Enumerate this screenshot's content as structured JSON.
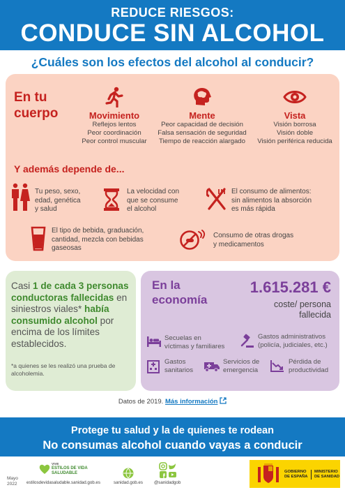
{
  "header": {
    "line1": "REDUCE RIESGOS:",
    "line2": "CONDUCE SIN ALCOHOL"
  },
  "question": "¿Cuáles son los efectos del alcohol al conducir?",
  "body_section": {
    "title_line1": "En tu",
    "title_line2": "cuerpo",
    "columns": [
      {
        "title": "Movimiento",
        "lines": [
          "Reflejos lentos",
          "Peor coordinación",
          "Peor control muscular"
        ],
        "icon": "running-person-icon"
      },
      {
        "title": "Mente",
        "lines": [
          "Peor capacidad de decisión",
          "Falsa sensación de seguridad",
          "Tiempo de reacción alargado"
        ],
        "icon": "head-brain-icon"
      },
      {
        "title": "Vista",
        "lines": [
          "Visión borrosa",
          "Visión doble",
          "Visión periférica reducida"
        ],
        "icon": "eye-icon"
      }
    ],
    "ademas": "Y además depende de...",
    "factors": [
      {
        "lines": [
          "Tu peso, sexo,",
          "edad, genética",
          "y salud"
        ],
        "icon": "people-icon"
      },
      {
        "lines": [
          "La velocidad con",
          "que se consume",
          "el alcohol"
        ],
        "icon": "hourglass-icon"
      },
      {
        "lines": [
          "El consumo de alimentos:",
          "sin alimentos la absorción",
          "es más rápida"
        ],
        "icon": "fork-knife-icon"
      },
      {
        "lines": [
          "El tipo de bebida, graduación,",
          "cantidad, mezcla con bebidas",
          "gaseosas"
        ],
        "icon": "glass-icon"
      },
      {
        "lines": [
          "Consumo de otras drogas",
          "y medicamentos"
        ],
        "icon": "pills-icon"
      }
    ]
  },
  "green_box": {
    "p1": "Casi ",
    "b1": "1 de cada 3 personas conductoras fallecidas",
    "p2": " en siniestros viales* ",
    "b2": "había consumido alcohol",
    "p3": " por encima de los límites establecidos.",
    "note": "*a quienes se les realizó una prueba de alcoholemia."
  },
  "economy": {
    "title_line1": "En la",
    "title_line2": "economía",
    "amount": "1.615.281 €",
    "coste": "coste/ persona fallecida",
    "items": [
      {
        "lines": [
          "Secuelas en",
          "víctimas y familiares"
        ],
        "icon": "hospital-bed-icon"
      },
      {
        "lines": [
          "Gastos administrativos",
          "(policía, judiciales, etc.)"
        ],
        "icon": "gavel-icon"
      },
      {
        "lines": [
          "Gastos",
          "sanitarios"
        ],
        "icon": "hospital-building-icon"
      },
      {
        "lines": [
          "Servicios de",
          "emergencia"
        ],
        "icon": "ambulance-icon"
      },
      {
        "lines": [
          "Pérdida de",
          "productividad"
        ],
        "icon": "chart-down-icon"
      }
    ]
  },
  "datos": {
    "text": "Datos de 2019. ",
    "link": "Más información"
  },
  "footer": {
    "line1": "Protege tu salud y la de quienes te rodean",
    "line2": "No consumas alcohol cuando vayas a conducir"
  },
  "bottom": {
    "date_line1": "Mayo",
    "date_line2": "2022",
    "estilos_logo_small": "VIVE",
    "estilos_logo_l1": "ESTILOS DE VIDA",
    "estilos_logo_l2": "SALUDABLE",
    "estilos_url": "estilosdevidasaludable.sanidad.gob.es",
    "sanidad_url": "sanidad.gob.es",
    "social": "@sanidadgob",
    "gobierno_l1": "GOBIERNO",
    "gobierno_l2": "DE ESPAÑA",
    "ministerio_l1": "MINISTERIO",
    "ministerio_l2": "DE SANIDAD"
  }
}
